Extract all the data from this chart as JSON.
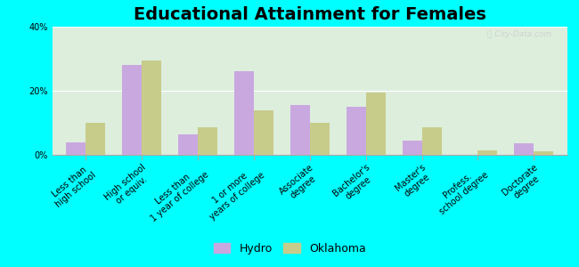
{
  "title": "Educational Attainment for Females",
  "categories": [
    "Less than\nhigh school",
    "High school\nor equiv.",
    "Less than\n1 year of college",
    "1 or more\nyears of college",
    "Associate\ndegree",
    "Bachelor's\ndegree",
    "Master's\ndegree",
    "Profess.\nschool degree",
    "Doctorate\ndegree"
  ],
  "hydro_values": [
    4.0,
    28.0,
    6.5,
    26.0,
    15.5,
    15.0,
    4.5,
    0.0,
    3.5
  ],
  "oklahoma_values": [
    10.0,
    29.5,
    8.5,
    14.0,
    10.0,
    19.5,
    8.5,
    1.5,
    1.0
  ],
  "hydro_color": "#c9a8e0",
  "oklahoma_color": "#c8cc8a",
  "background_color": "#ddeedd",
  "outer_background": "#00ffff",
  "ylim": [
    0,
    40
  ],
  "yticks": [
    0,
    20,
    40
  ],
  "ytick_labels": [
    "0%",
    "20%",
    "40%"
  ],
  "legend_hydro": "Hydro",
  "legend_oklahoma": "Oklahoma",
  "title_fontsize": 14,
  "tick_fontsize": 7,
  "legend_fontsize": 9,
  "bar_width": 0.35
}
